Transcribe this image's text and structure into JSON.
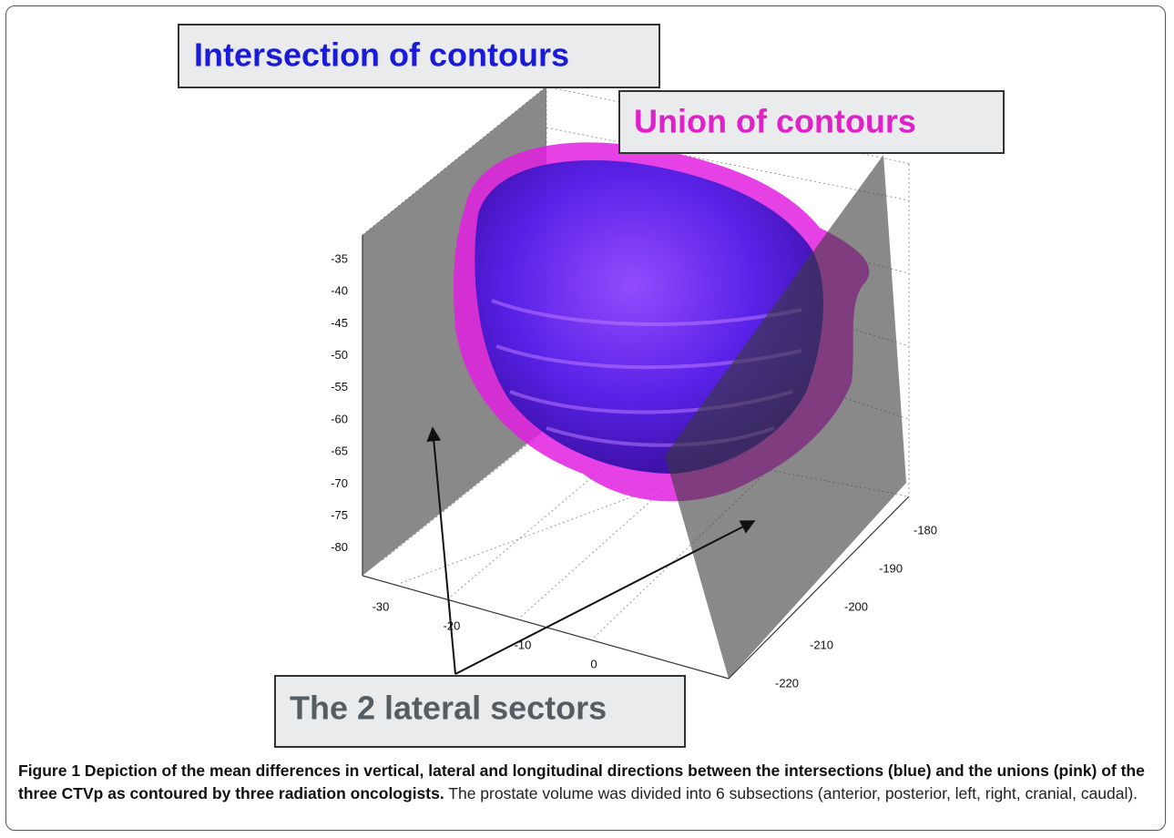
{
  "figure": {
    "annotations": {
      "intersection": "Intersection of contours",
      "union": "Union of contours",
      "sectors": "The 2 lateral sectors"
    },
    "axes": {
      "z_ticks": [
        -35,
        -40,
        -45,
        -50,
        -55,
        -60,
        -65,
        -70,
        -75,
        -80
      ],
      "x_ticks": [
        -30,
        -20,
        -10,
        0
      ],
      "y_ticks": [
        -180,
        -190,
        -200,
        -210,
        -220
      ]
    }
  },
  "caption": {
    "title": "Figure 1 Depiction of the mean differences in vertical, lateral and longitudinal directions between the intersections (blue) and the unions (pink) of the three CTVp as contoured by three radiation oncologists.",
    "text": "The prostate volume was divided into 6 subsections (anterior, posterior, left, right, cranial, caudal)."
  }
}
